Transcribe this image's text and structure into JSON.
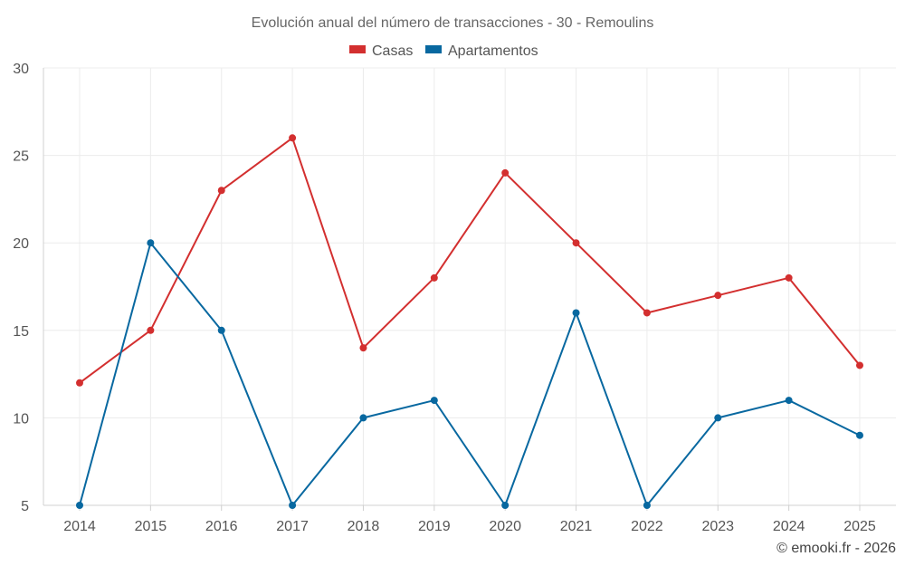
{
  "chart_data": {
    "type": "line",
    "title": "Evolución anual del número de transacciones - 30 - Remoulins",
    "categories": [
      "2014",
      "2015",
      "2016",
      "2017",
      "2018",
      "2019",
      "2020",
      "2021",
      "2022",
      "2023",
      "2024",
      "2025"
    ],
    "series": [
      {
        "name": "Casas",
        "color": "#d32f2f",
        "values": [
          12,
          15,
          23,
          26,
          14,
          18,
          24,
          20,
          16,
          17,
          18,
          13
        ]
      },
      {
        "name": "Apartamentos",
        "color": "#0868a0",
        "values": [
          5,
          20,
          15,
          5,
          10,
          11,
          5,
          16,
          5,
          10,
          11,
          9
        ]
      }
    ],
    "ylim": [
      5,
      30
    ],
    "yticks": [
      5,
      10,
      15,
      20,
      25,
      30
    ],
    "legend_position": "top-center",
    "grid": true,
    "xlabel": "",
    "ylabel": ""
  },
  "credit": "© emooki.fr - 2026"
}
